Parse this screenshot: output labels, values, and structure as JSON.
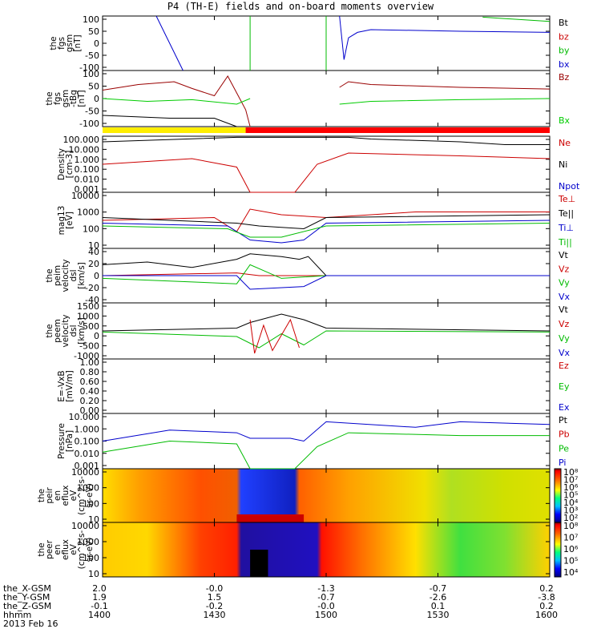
{
  "title": "P4 (TH-E) fields and on-board moments overview",
  "chart_data": {
    "type": "line",
    "x_ticks": [
      "1400",
      "1430",
      "1500",
      "1530",
      "1600"
    ],
    "panels": [
      {
        "id": "fgs",
        "ylabel": [
          "the",
          "fgs",
          "gsm",
          "[nT]"
        ],
        "yticks": [
          "100",
          "50",
          "0",
          "-50",
          "-100"
        ],
        "legend": [
          {
            "name": "Bt",
            "color": "#000000"
          },
          {
            "name": "bz",
            "color": "#cc0000"
          },
          {
            "name": "by",
            "color": "#00bb00"
          },
          {
            "name": "bx",
            "color": "#0000cc"
          }
        ]
      },
      {
        "id": "fgs_zoom",
        "ylabel": [
          "the",
          "fgs",
          "gsm",
          "-tBg",
          "[nT]"
        ],
        "yticks": [
          "100",
          "50",
          "0",
          "-50",
          "-100"
        ],
        "legend": [
          {
            "name": "Bz",
            "color": "#990000"
          },
          {
            "name": "Bx",
            "color": "#00cc00"
          }
        ]
      },
      {
        "id": "density",
        "ylabel": [
          "Density",
          "[cm-3]"
        ],
        "yticks": [
          "100.000",
          "10.000",
          "1.000",
          "0.100",
          "0.010",
          "0.001"
        ],
        "legend": [
          {
            "name": "Ne",
            "color": "#cc0000"
          },
          {
            "name": "Ni",
            "color": "#000000"
          },
          {
            "name": "Npot",
            "color": "#0000cc"
          }
        ]
      },
      {
        "id": "temp",
        "ylabel": [
          "mag13",
          "[eV]"
        ],
        "yticks": [
          "10000",
          "1000",
          "100",
          "10"
        ],
        "legend": [
          {
            "name": "Te⊥",
            "color": "#cc0000"
          },
          {
            "name": "Te||",
            "color": "#000000"
          },
          {
            "name": "Ti⊥",
            "color": "#0000cc"
          },
          {
            "name": "Ti||",
            "color": "#00bb00"
          }
        ]
      },
      {
        "id": "peim",
        "ylabel": [
          "the",
          "peim",
          "velocity",
          "dsl",
          "[km/s]"
        ],
        "yticks": [
          "40",
          "20",
          "0",
          "-20",
          "-40"
        ],
        "legend": [
          {
            "name": "Vt",
            "color": "#000000"
          },
          {
            "name": "Vz",
            "color": "#cc0000"
          },
          {
            "name": "Vy",
            "color": "#00bb00"
          },
          {
            "name": "Vx",
            "color": "#0000cc"
          }
        ]
      },
      {
        "id": "peem",
        "ylabel": [
          "the",
          "peem",
          "velocity",
          "dsl",
          "[km/s]"
        ],
        "yticks": [
          "1500",
          "1000",
          "500",
          "0",
          "-500",
          "-1000"
        ],
        "legend": [
          {
            "name": "Vt",
            "color": "#000000"
          },
          {
            "name": "Vz",
            "color": "#cc0000"
          },
          {
            "name": "Vy",
            "color": "#00bb00"
          },
          {
            "name": "Vx",
            "color": "#0000cc"
          }
        ]
      },
      {
        "id": "efield",
        "ylabel": [
          "E=-VxB",
          "[mV/m]"
        ],
        "yticks": [
          "1.00",
          "0.80",
          "0.60",
          "0.40",
          "0.20",
          "0.00"
        ],
        "legend": [
          {
            "name": "Ez",
            "color": "#cc0000"
          },
          {
            "name": "Ey",
            "color": "#00bb00"
          },
          {
            "name": "Ex",
            "color": "#0000cc"
          }
        ]
      },
      {
        "id": "pressure",
        "ylabel": [
          "Pressure",
          "[nPa]"
        ],
        "yticks": [
          "10.000",
          "1.000",
          "0.100",
          "0.010",
          "0.001"
        ],
        "legend": [
          {
            "name": "Pt",
            "color": "#000000"
          },
          {
            "name": "Pb",
            "color": "#cc0000"
          },
          {
            "name": "Pe",
            "color": "#00bb00"
          },
          {
            "name": "Pi",
            "color": "#0000cc"
          }
        ]
      },
      {
        "id": "peir_spec",
        "ylabel": [
          "the",
          "peir",
          "en",
          "eflux",
          "eV",
          "(cm^2-s-",
          "sr-eV)"
        ],
        "yticks": [
          "10000",
          "1000",
          "100",
          "10"
        ],
        "colorbar": [
          "10⁸",
          "10⁷",
          "10⁶",
          "10⁵",
          "10⁴",
          "10³",
          "10²"
        ]
      },
      {
        "id": "peer_spec",
        "ylabel": [
          "the",
          "peer",
          "en",
          "eflux",
          "eV",
          "(cm^2-s-",
          "sr-eV)"
        ],
        "yticks": [
          "10000",
          "1000",
          "100",
          "10"
        ],
        "colorbar": [
          "10⁸",
          "10⁷",
          "10⁶",
          "10⁵",
          "10⁴"
        ]
      }
    ],
    "ephemeris": [
      {
        "label": "the_X-GSM",
        "values": [
          "2.0",
          "-0.0",
          "-1.3",
          "-0.7",
          "0.2"
        ]
      },
      {
        "label": "the_Y-GSM",
        "values": [
          "1.9",
          "1.5",
          "-0.7",
          "-2.6",
          "-3.8"
        ]
      },
      {
        "label": "the_Z-GSM",
        "values": [
          "-0.1",
          "-0.2",
          "-0.0",
          "0.1",
          "0.2"
        ]
      },
      {
        "label": "hhmm",
        "values": [
          "1400",
          "1430",
          "1500",
          "1530",
          "1600"
        ]
      }
    ],
    "date": "2013 Feb 16"
  }
}
